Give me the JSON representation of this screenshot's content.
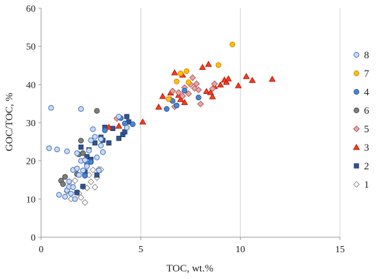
{
  "chart_data": {
    "type": "scatter",
    "xlabel": "TOC, wt.%",
    "ylabel": "GOC/TOC, %",
    "xlim": [
      0,
      15
    ],
    "ylim": [
      0,
      60
    ],
    "xticks": [
      "0",
      "5",
      "10",
      "15"
    ],
    "yticks": [
      "0",
      "10",
      "20",
      "30",
      "40",
      "50",
      "60"
    ],
    "grid": "vertical",
    "legend_position": "right",
    "series": [
      {
        "name": "8",
        "marker": "circle",
        "fill": "#c9dcf3",
        "stroke": "#4472c4",
        "points": [
          [
            0.4,
            23.3
          ],
          [
            0.5,
            33.9
          ],
          [
            0.8,
            23.0
          ],
          [
            0.9,
            11.1
          ],
          [
            1.2,
            10.6
          ],
          [
            1.3,
            22.5
          ],
          [
            1.3,
            12.3
          ],
          [
            1.4,
            14.6
          ],
          [
            1.4,
            13.2
          ],
          [
            1.5,
            11.4
          ],
          [
            1.6,
            17.6
          ],
          [
            1.6,
            13.1
          ],
          [
            1.7,
            10.0
          ],
          [
            1.8,
            22.0
          ],
          [
            1.8,
            18.0
          ],
          [
            1.9,
            16.3
          ],
          [
            2.0,
            33.6
          ],
          [
            2.0,
            20.0
          ],
          [
            2.1,
            17.5
          ],
          [
            2.2,
            20.2
          ],
          [
            2.3,
            18.6
          ],
          [
            2.4,
            22.7
          ],
          [
            2.5,
            25.4
          ],
          [
            2.6,
            28.3
          ],
          [
            2.7,
            26.3
          ],
          [
            2.8,
            20.9
          ],
          [
            2.9,
            17.5
          ],
          [
            3.0,
            25.7
          ],
          [
            3.0,
            24.0
          ],
          [
            3.1,
            22.3
          ],
          [
            3.9,
            31.6
          ],
          [
            4.3,
            28.7
          ]
        ]
      },
      {
        "name": "7",
        "marker": "circle",
        "fill": "#ffc000",
        "stroke": "#d48806",
        "points": [
          [
            6.4,
            36.2
          ],
          [
            6.8,
            40.8
          ],
          [
            7.0,
            42.9
          ],
          [
            7.3,
            43.5
          ],
          [
            7.4,
            40.6
          ],
          [
            8.9,
            45.1
          ],
          [
            9.6,
            50.5
          ]
        ]
      },
      {
        "name": "4",
        "marker": "circle",
        "fill": "#4a86d4",
        "stroke": "#2b5a9e",
        "points": [
          [
            2.2,
            16.1
          ],
          [
            2.3,
            19.2
          ],
          [
            2.5,
            19.7
          ],
          [
            3.2,
            28.0
          ],
          [
            4.0,
            31.2
          ],
          [
            4.2,
            29.8
          ],
          [
            4.6,
            29.6
          ],
          [
            6.3,
            33.6
          ],
          [
            6.6,
            35.7
          ],
          [
            6.8,
            34.5
          ],
          [
            7.2,
            38.4
          ],
          [
            7.9,
            36.6
          ]
        ]
      },
      {
        "name": "6",
        "marker": "circle",
        "fill": "#7f7f7f",
        "stroke": "#4d4d4d",
        "points": [
          [
            1.0,
            14.8
          ],
          [
            1.1,
            13.9
          ],
          [
            1.2,
            15.8
          ],
          [
            1.8,
            16.5
          ],
          [
            1.9,
            21.7
          ],
          [
            2.0,
            25.3
          ],
          [
            2.1,
            22.0
          ],
          [
            2.8,
            33.1
          ]
        ]
      },
      {
        "name": "5",
        "marker": "diamond",
        "fill": "#e8a7a7",
        "stroke": "#b35a5a",
        "points": [
          [
            3.8,
            31.1
          ],
          [
            6.5,
            36.1
          ],
          [
            6.6,
            38.3
          ],
          [
            6.7,
            34.2
          ],
          [
            6.9,
            37.9
          ],
          [
            7.1,
            37.0
          ],
          [
            7.2,
            39.2
          ],
          [
            7.4,
            37.6
          ],
          [
            7.5,
            40.0
          ],
          [
            7.6,
            41.8
          ],
          [
            7.7,
            39.0
          ],
          [
            7.8,
            40.2
          ],
          [
            7.9,
            38.6
          ],
          [
            8.0,
            34.9
          ],
          [
            8.6,
            38.9
          ],
          [
            8.7,
            40.2
          ]
        ]
      },
      {
        "name": "3",
        "marker": "triangle",
        "fill": "#ff3b1f",
        "stroke": "#b31d0a",
        "points": [
          [
            3.4,
            28.8
          ],
          [
            3.9,
            29.1
          ],
          [
            5.1,
            30.2
          ],
          [
            5.9,
            34.1
          ],
          [
            6.1,
            36.9
          ],
          [
            6.5,
            37.8
          ],
          [
            6.7,
            43.1
          ],
          [
            6.9,
            37.2
          ],
          [
            7.0,
            36.1
          ],
          [
            7.1,
            42.5
          ],
          [
            7.2,
            35.3
          ],
          [
            8.1,
            44.5
          ],
          [
            8.3,
            38.2
          ],
          [
            8.4,
            45.3
          ],
          [
            8.5,
            37.9
          ],
          [
            8.6,
            36.8
          ],
          [
            8.7,
            39.5
          ],
          [
            9.0,
            39.9
          ],
          [
            9.2,
            41.2
          ],
          [
            9.3,
            40.6
          ],
          [
            9.4,
            41.5
          ],
          [
            9.9,
            39.7
          ],
          [
            10.3,
            42.1
          ],
          [
            10.6,
            41.1
          ],
          [
            11.6,
            41.4
          ]
        ]
      },
      {
        "name": "2",
        "marker": "square",
        "fill": "#2f5597",
        "stroke": "#1f3864",
        "points": [
          [
            1.8,
            11.7
          ],
          [
            2.0,
            23.6
          ],
          [
            2.1,
            13.3
          ],
          [
            2.2,
            17.1
          ],
          [
            2.3,
            21.1
          ],
          [
            2.4,
            22.9
          ],
          [
            2.5,
            20.4
          ],
          [
            2.7,
            24.7
          ],
          [
            2.8,
            16.3
          ],
          [
            3.0,
            26.2
          ],
          [
            3.1,
            25.4
          ],
          [
            3.2,
            28.8
          ],
          [
            3.4,
            24.7
          ],
          [
            3.6,
            28.5
          ],
          [
            3.9,
            25.9
          ],
          [
            4.1,
            26.9
          ],
          [
            4.2,
            27.6
          ],
          [
            4.3,
            31.6
          ],
          [
            4.4,
            30.2
          ]
        ]
      },
      {
        "name": "1",
        "marker": "diamond",
        "fill": "#ffffff",
        "stroke": "#8c8c8c",
        "points": [
          [
            1.3,
            12.0
          ],
          [
            1.5,
            10.0
          ],
          [
            1.6,
            14.3
          ],
          [
            1.7,
            14.8
          ],
          [
            1.8,
            11.7
          ],
          [
            1.9,
            11.5
          ],
          [
            2.0,
            10.4
          ],
          [
            2.1,
            13.2
          ],
          [
            2.2,
            9.1
          ],
          [
            2.3,
            12.9
          ],
          [
            2.4,
            16.3
          ],
          [
            2.5,
            14.5
          ],
          [
            2.6,
            17.6
          ],
          [
            2.7,
            13.1
          ],
          [
            2.8,
            15.6
          ],
          [
            2.9,
            17.8
          ],
          [
            3.0,
            17.7
          ]
        ]
      }
    ]
  }
}
